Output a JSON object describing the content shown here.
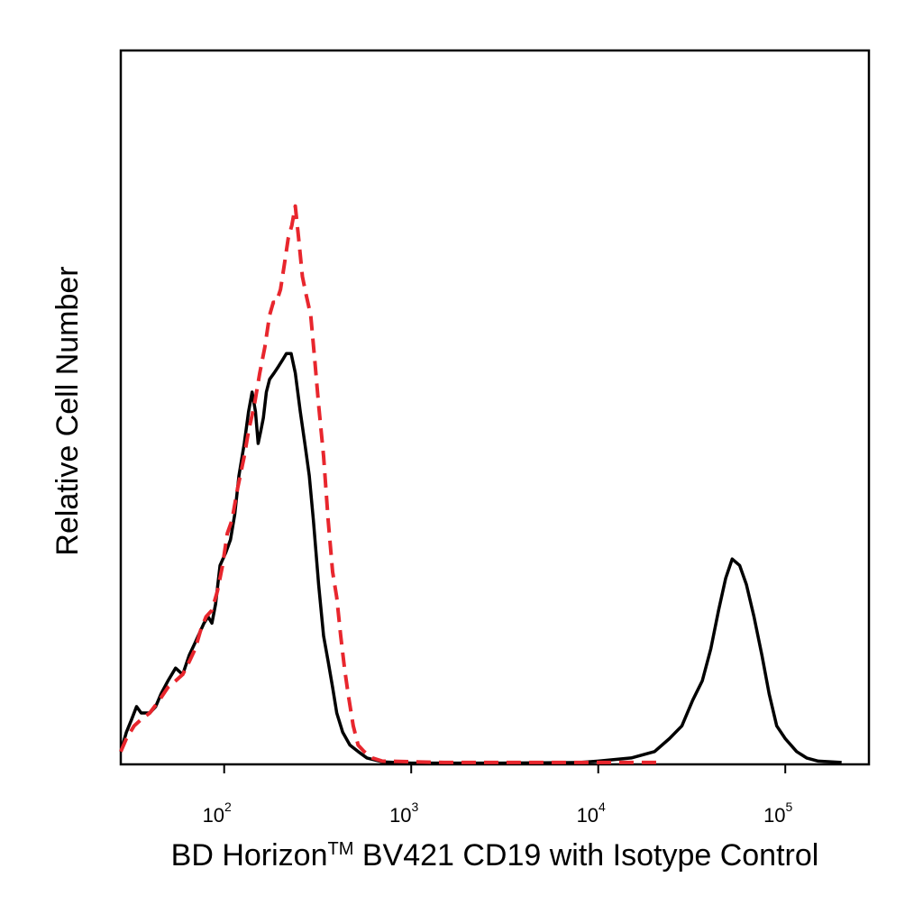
{
  "chart_data": {
    "type": "line",
    "xscale": "log",
    "xlim": [
      28,
      280000
    ],
    "ylim": [
      0,
      100
    ],
    "grid": false,
    "legend": "none",
    "xlabel": {
      "prefix": "BD Horizon",
      "superscript": "TM",
      "suffix": " BV421 CD19 with Isotype Control"
    },
    "ylabel": "Relative Cell Number",
    "xticks": [
      {
        "value": 100,
        "base": "10",
        "exp": "2"
      },
      {
        "value": 1000,
        "base": "10",
        "exp": "3"
      },
      {
        "value": 10000,
        "base": "10",
        "exp": "4"
      },
      {
        "value": 100000,
        "base": "10",
        "exp": "5"
      }
    ],
    "series": [
      {
        "color": "#000000",
        "style": "solid",
        "points": [
          [
            28,
            2
          ],
          [
            30,
            5
          ],
          [
            32,
            7
          ],
          [
            34,
            9
          ],
          [
            36,
            8
          ],
          [
            40,
            8
          ],
          [
            43,
            9
          ],
          [
            46,
            11
          ],
          [
            50,
            13
          ],
          [
            55,
            15
          ],
          [
            60,
            14
          ],
          [
            65,
            17
          ],
          [
            70,
            19
          ],
          [
            78,
            22
          ],
          [
            82,
            23
          ],
          [
            86,
            22
          ],
          [
            90,
            25
          ],
          [
            95,
            31
          ],
          [
            102,
            33
          ],
          [
            108,
            35
          ],
          [
            114,
            39
          ],
          [
            120,
            45
          ],
          [
            128,
            50
          ],
          [
            135,
            55
          ],
          [
            141,
            58
          ],
          [
            147,
            55
          ],
          [
            152,
            50
          ],
          [
            157,
            52
          ],
          [
            162,
            54
          ],
          [
            168,
            58
          ],
          [
            175,
            60
          ],
          [
            185,
            61
          ],
          [
            195,
            62
          ],
          [
            205,
            63
          ],
          [
            215,
            64
          ],
          [
            228,
            64
          ],
          [
            240,
            61
          ],
          [
            255,
            55
          ],
          [
            270,
            50
          ],
          [
            285,
            45
          ],
          [
            300,
            38
          ],
          [
            320,
            28
          ],
          [
            340,
            20
          ],
          [
            360,
            16
          ],
          [
            380,
            12
          ],
          [
            400,
            8
          ],
          [
            430,
            5
          ],
          [
            470,
            3
          ],
          [
            520,
            2
          ],
          [
            580,
            1
          ],
          [
            700,
            0.4
          ],
          [
            1000,
            0.2
          ],
          [
            3000,
            0.2
          ],
          [
            8000,
            0.3
          ],
          [
            10000,
            0.5
          ],
          [
            15000,
            1
          ],
          [
            20000,
            2
          ],
          [
            24000,
            4
          ],
          [
            28000,
            6
          ],
          [
            32000,
            10
          ],
          [
            36000,
            13
          ],
          [
            40000,
            18
          ],
          [
            44000,
            24
          ],
          [
            48000,
            29
          ],
          [
            52000,
            32
          ],
          [
            57000,
            31
          ],
          [
            62000,
            28
          ],
          [
            68000,
            23
          ],
          [
            75000,
            17
          ],
          [
            82000,
            11
          ],
          [
            90000,
            6
          ],
          [
            100000,
            4
          ],
          [
            115000,
            2
          ],
          [
            130000,
            1
          ],
          [
            150000,
            0.5
          ],
          [
            200000,
            0.3
          ]
        ]
      },
      {
        "color": "#e8262d",
        "style": "dashed",
        "points": [
          [
            28,
            2
          ],
          [
            30,
            4
          ],
          [
            33,
            6
          ],
          [
            36,
            7
          ],
          [
            40,
            8
          ],
          [
            45,
            10
          ],
          [
            50,
            12
          ],
          [
            55,
            13
          ],
          [
            60,
            14
          ],
          [
            65,
            16
          ],
          [
            70,
            18
          ],
          [
            75,
            21
          ],
          [
            80,
            23
          ],
          [
            86,
            24
          ],
          [
            92,
            27
          ],
          [
            98,
            31
          ],
          [
            104,
            36
          ],
          [
            110,
            38
          ],
          [
            118,
            43
          ],
          [
            128,
            48
          ],
          [
            135,
            52
          ],
          [
            145,
            56
          ],
          [
            155,
            61
          ],
          [
            165,
            65
          ],
          [
            175,
            70
          ],
          [
            183,
            72
          ],
          [
            190,
            72
          ],
          [
            200,
            74
          ],
          [
            210,
            78
          ],
          [
            220,
            82
          ],
          [
            230,
            84
          ],
          [
            240,
            87
          ],
          [
            250,
            82
          ],
          [
            262,
            76
          ],
          [
            275,
            73
          ],
          [
            290,
            70
          ],
          [
            305,
            63
          ],
          [
            320,
            56
          ],
          [
            340,
            48
          ],
          [
            360,
            38
          ],
          [
            380,
            30
          ],
          [
            400,
            26
          ],
          [
            420,
            20
          ],
          [
            440,
            15
          ],
          [
            460,
            11
          ],
          [
            490,
            6
          ],
          [
            520,
            3
          ],
          [
            560,
            2
          ],
          [
            620,
            1
          ],
          [
            700,
            0.5
          ],
          [
            1500,
            0.3
          ],
          [
            3500,
            0.3
          ],
          [
            8000,
            0.3
          ],
          [
            15000,
            0.3
          ],
          [
            22000,
            0.3
          ]
        ]
      }
    ]
  }
}
